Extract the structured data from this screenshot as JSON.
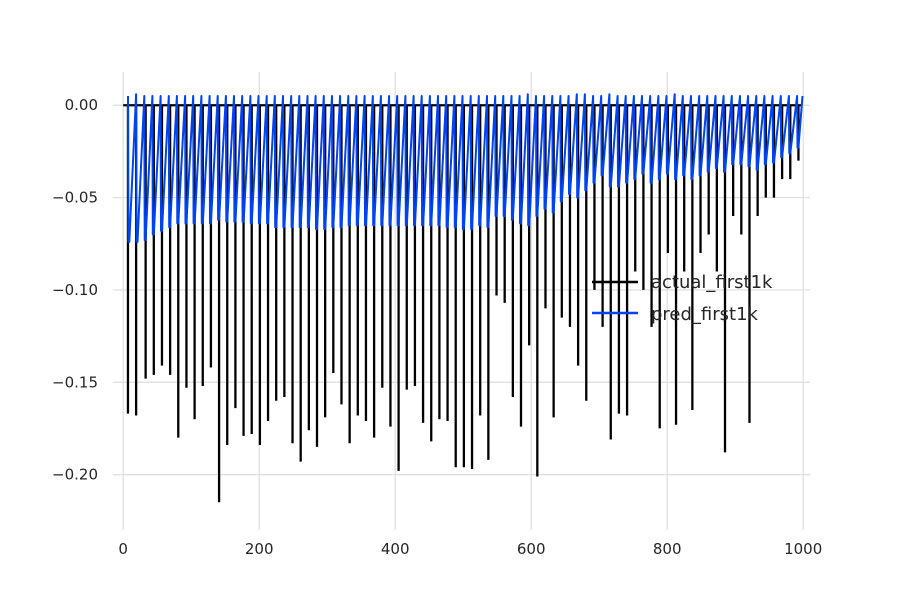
{
  "chart_data": {
    "type": "line",
    "title": "",
    "xlabel": "",
    "ylabel": "",
    "xlim": [
      -15,
      1010
    ],
    "ylim": [
      -0.23,
      0.018
    ],
    "xticks": [
      0,
      200,
      400,
      600,
      800,
      1000
    ],
    "xtick_labels": [
      "0",
      "200",
      "400",
      "600",
      "800",
      "1000"
    ],
    "yticks": [
      0.0,
      -0.05,
      -0.1,
      -0.15,
      -0.2
    ],
    "ytick_labels": [
      "0.00",
      "−0.05",
      "−0.10",
      "−0.15",
      "−0.20"
    ],
    "grid": true,
    "legend_position": "right",
    "series": [
      {
        "name": "actual_first1k",
        "color": "#000000",
        "baseline": 0.0,
        "x_range": [
          0,
          999
        ],
        "spikes": [
          {
            "x": 7,
            "y": -0.167
          },
          {
            "x": 19,
            "y": -0.168
          },
          {
            "x": 33,
            "y": -0.148
          },
          {
            "x": 45,
            "y": -0.146
          },
          {
            "x": 57,
            "y": -0.141
          },
          {
            "x": 69,
            "y": -0.146
          },
          {
            "x": 81,
            "y": -0.18
          },
          {
            "x": 93,
            "y": -0.153
          },
          {
            "x": 105,
            "y": -0.17
          },
          {
            "x": 117,
            "y": -0.152
          },
          {
            "x": 129,
            "y": -0.142
          },
          {
            "x": 141,
            "y": -0.215
          },
          {
            "x": 153,
            "y": -0.184
          },
          {
            "x": 165,
            "y": -0.164
          },
          {
            "x": 177,
            "y": -0.179
          },
          {
            "x": 189,
            "y": -0.178
          },
          {
            "x": 201,
            "y": -0.184
          },
          {
            "x": 213,
            "y": -0.171
          },
          {
            "x": 225,
            "y": -0.16
          },
          {
            "x": 237,
            "y": -0.158
          },
          {
            "x": 249,
            "y": -0.183
          },
          {
            "x": 261,
            "y": -0.193
          },
          {
            "x": 273,
            "y": -0.176
          },
          {
            "x": 285,
            "y": -0.185
          },
          {
            "x": 297,
            "y": -0.169
          },
          {
            "x": 309,
            "y": -0.145
          },
          {
            "x": 321,
            "y": -0.162
          },
          {
            "x": 333,
            "y": -0.183
          },
          {
            "x": 345,
            "y": -0.168
          },
          {
            "x": 357,
            "y": -0.171
          },
          {
            "x": 369,
            "y": -0.18
          },
          {
            "x": 381,
            "y": -0.153
          },
          {
            "x": 393,
            "y": -0.174
          },
          {
            "x": 405,
            "y": -0.198
          },
          {
            "x": 417,
            "y": -0.154
          },
          {
            "x": 429,
            "y": -0.152
          },
          {
            "x": 441,
            "y": -0.172
          },
          {
            "x": 453,
            "y": -0.182
          },
          {
            "x": 465,
            "y": -0.17
          },
          {
            "x": 477,
            "y": -0.171
          },
          {
            "x": 489,
            "y": -0.196
          },
          {
            "x": 501,
            "y": -0.196
          },
          {
            "x": 513,
            "y": -0.197
          },
          {
            "x": 525,
            "y": -0.168
          },
          {
            "x": 537,
            "y": -0.192
          },
          {
            "x": 549,
            "y": -0.103
          },
          {
            "x": 561,
            "y": -0.107
          },
          {
            "x": 573,
            "y": -0.158
          },
          {
            "x": 585,
            "y": -0.174
          },
          {
            "x": 597,
            "y": -0.13
          },
          {
            "x": 609,
            "y": -0.201
          },
          {
            "x": 621,
            "y": -0.11
          },
          {
            "x": 633,
            "y": -0.169
          },
          {
            "x": 645,
            "y": -0.115
          },
          {
            "x": 657,
            "y": -0.12
          },
          {
            "x": 669,
            "y": -0.141
          },
          {
            "x": 681,
            "y": -0.16
          },
          {
            "x": 693,
            "y": -0.1
          },
          {
            "x": 705,
            "y": -0.12
          },
          {
            "x": 717,
            "y": -0.181
          },
          {
            "x": 729,
            "y": -0.167
          },
          {
            "x": 741,
            "y": -0.168
          },
          {
            "x": 753,
            "y": -0.09
          },
          {
            "x": 765,
            "y": -0.1
          },
          {
            "x": 777,
            "y": -0.12
          },
          {
            "x": 789,
            "y": -0.175
          },
          {
            "x": 801,
            "y": -0.08
          },
          {
            "x": 813,
            "y": -0.173
          },
          {
            "x": 825,
            "y": -0.09
          },
          {
            "x": 837,
            "y": -0.165
          },
          {
            "x": 849,
            "y": -0.08
          },
          {
            "x": 861,
            "y": -0.07
          },
          {
            "x": 873,
            "y": -0.09
          },
          {
            "x": 885,
            "y": -0.188
          },
          {
            "x": 897,
            "y": -0.06
          },
          {
            "x": 909,
            "y": -0.07
          },
          {
            "x": 921,
            "y": -0.172
          },
          {
            "x": 933,
            "y": -0.06
          },
          {
            "x": 945,
            "y": -0.05
          },
          {
            "x": 957,
            "y": -0.05
          },
          {
            "x": 969,
            "y": -0.04
          },
          {
            "x": 981,
            "y": -0.04
          },
          {
            "x": 993,
            "y": -0.03
          }
        ]
      },
      {
        "name": "pred_first1k",
        "color": "#0044ee",
        "x_range": [
          0,
          999
        ],
        "peaks": [
          {
            "x": 7,
            "y": 0.005
          },
          {
            "x": 19,
            "y": 0.006
          },
          {
            "x": 31,
            "y": 0.005
          },
          {
            "x": 43,
            "y": 0.005
          },
          {
            "x": 55,
            "y": 0.005
          },
          {
            "x": 67,
            "y": 0.005
          },
          {
            "x": 79,
            "y": 0.005
          },
          {
            "x": 91,
            "y": 0.005
          },
          {
            "x": 103,
            "y": 0.005
          },
          {
            "x": 115,
            "y": 0.005
          },
          {
            "x": 127,
            "y": 0.005
          },
          {
            "x": 139,
            "y": 0.005
          },
          {
            "x": 151,
            "y": 0.005
          },
          {
            "x": 163,
            "y": 0.005
          },
          {
            "x": 175,
            "y": 0.005
          },
          {
            "x": 187,
            "y": 0.005
          },
          {
            "x": 199,
            "y": 0.005
          },
          {
            "x": 211,
            "y": 0.005
          },
          {
            "x": 223,
            "y": 0.005
          },
          {
            "x": 235,
            "y": 0.005
          },
          {
            "x": 247,
            "y": 0.005
          },
          {
            "x": 259,
            "y": 0.005
          },
          {
            "x": 271,
            "y": 0.005
          },
          {
            "x": 283,
            "y": 0.005
          },
          {
            "x": 295,
            "y": 0.005
          },
          {
            "x": 307,
            "y": 0.005
          },
          {
            "x": 319,
            "y": 0.005
          },
          {
            "x": 331,
            "y": 0.005
          },
          {
            "x": 343,
            "y": 0.005
          },
          {
            "x": 355,
            "y": 0.005
          },
          {
            "x": 367,
            "y": 0.005
          },
          {
            "x": 379,
            "y": 0.005
          },
          {
            "x": 391,
            "y": 0.005
          },
          {
            "x": 403,
            "y": 0.005
          },
          {
            "x": 415,
            "y": 0.005
          },
          {
            "x": 427,
            "y": 0.005
          },
          {
            "x": 439,
            "y": 0.005
          },
          {
            "x": 451,
            "y": 0.005
          },
          {
            "x": 463,
            "y": 0.005
          },
          {
            "x": 475,
            "y": 0.005
          },
          {
            "x": 487,
            "y": 0.005
          },
          {
            "x": 499,
            "y": 0.005
          },
          {
            "x": 511,
            "y": 0.005
          },
          {
            "x": 523,
            "y": 0.005
          },
          {
            "x": 535,
            "y": 0.005
          },
          {
            "x": 547,
            "y": 0.005
          },
          {
            "x": 559,
            "y": 0.005
          },
          {
            "x": 571,
            "y": 0.005
          },
          {
            "x": 583,
            "y": 0.005
          },
          {
            "x": 595,
            "y": 0.006
          },
          {
            "x": 607,
            "y": 0.005
          },
          {
            "x": 619,
            "y": 0.005
          },
          {
            "x": 631,
            "y": 0.005
          },
          {
            "x": 643,
            "y": 0.005
          },
          {
            "x": 655,
            "y": 0.005
          },
          {
            "x": 667,
            "y": 0.006
          },
          {
            "x": 679,
            "y": 0.006
          },
          {
            "x": 691,
            "y": 0.005
          },
          {
            "x": 703,
            "y": 0.005
          },
          {
            "x": 715,
            "y": 0.006
          },
          {
            "x": 727,
            "y": 0.005
          },
          {
            "x": 739,
            "y": 0.005
          },
          {
            "x": 751,
            "y": 0.005
          },
          {
            "x": 763,
            "y": 0.005
          },
          {
            "x": 775,
            "y": 0.005
          },
          {
            "x": 787,
            "y": 0.005
          },
          {
            "x": 799,
            "y": 0.005
          },
          {
            "x": 811,
            "y": 0.006
          },
          {
            "x": 823,
            "y": 0.005
          },
          {
            "x": 835,
            "y": 0.005
          },
          {
            "x": 847,
            "y": 0.005
          },
          {
            "x": 859,
            "y": 0.005
          },
          {
            "x": 871,
            "y": 0.005
          },
          {
            "x": 883,
            "y": 0.005
          },
          {
            "x": 895,
            "y": 0.005
          },
          {
            "x": 907,
            "y": 0.005
          },
          {
            "x": 919,
            "y": 0.005
          },
          {
            "x": 931,
            "y": 0.005
          },
          {
            "x": 943,
            "y": 0.005
          },
          {
            "x": 955,
            "y": 0.005
          },
          {
            "x": 967,
            "y": 0.005
          },
          {
            "x": 979,
            "y": 0.005
          },
          {
            "x": 991,
            "y": 0.005
          }
        ],
        "troughs": [
          {
            "x": 9,
            "y": -0.074
          },
          {
            "x": 21,
            "y": -0.074
          },
          {
            "x": 33,
            "y": -0.073
          },
          {
            "x": 45,
            "y": -0.07
          },
          {
            "x": 57,
            "y": -0.068
          },
          {
            "x": 69,
            "y": -0.066
          },
          {
            "x": 81,
            "y": -0.064
          },
          {
            "x": 93,
            "y": -0.064
          },
          {
            "x": 105,
            "y": -0.064
          },
          {
            "x": 117,
            "y": -0.064
          },
          {
            "x": 129,
            "y": -0.064
          },
          {
            "x": 141,
            "y": -0.062
          },
          {
            "x": 153,
            "y": -0.063
          },
          {
            "x": 165,
            "y": -0.063
          },
          {
            "x": 177,
            "y": -0.063
          },
          {
            "x": 189,
            "y": -0.064
          },
          {
            "x": 201,
            "y": -0.064
          },
          {
            "x": 213,
            "y": -0.064
          },
          {
            "x": 225,
            "y": -0.066
          },
          {
            "x": 237,
            "y": -0.066
          },
          {
            "x": 249,
            "y": -0.066
          },
          {
            "x": 261,
            "y": -0.066
          },
          {
            "x": 273,
            "y": -0.066
          },
          {
            "x": 285,
            "y": -0.067
          },
          {
            "x": 297,
            "y": -0.067
          },
          {
            "x": 309,
            "y": -0.066
          },
          {
            "x": 321,
            "y": -0.066
          },
          {
            "x": 333,
            "y": -0.065
          },
          {
            "x": 345,
            "y": -0.065
          },
          {
            "x": 357,
            "y": -0.065
          },
          {
            "x": 369,
            "y": -0.065
          },
          {
            "x": 381,
            "y": -0.065
          },
          {
            "x": 393,
            "y": -0.065
          },
          {
            "x": 405,
            "y": -0.065
          },
          {
            "x": 417,
            "y": -0.065
          },
          {
            "x": 429,
            "y": -0.065
          },
          {
            "x": 441,
            "y": -0.065
          },
          {
            "x": 453,
            "y": -0.065
          },
          {
            "x": 465,
            "y": -0.065
          },
          {
            "x": 477,
            "y": -0.066
          },
          {
            "x": 489,
            "y": -0.066
          },
          {
            "x": 501,
            "y": -0.067
          },
          {
            "x": 513,
            "y": -0.067
          },
          {
            "x": 525,
            "y": -0.065
          },
          {
            "x": 537,
            "y": -0.066
          },
          {
            "x": 549,
            "y": -0.06
          },
          {
            "x": 561,
            "y": -0.06
          },
          {
            "x": 573,
            "y": -0.062
          },
          {
            "x": 585,
            "y": -0.064
          },
          {
            "x": 597,
            "y": -0.065
          },
          {
            "x": 609,
            "y": -0.06
          },
          {
            "x": 621,
            "y": -0.056
          },
          {
            "x": 633,
            "y": -0.058
          },
          {
            "x": 645,
            "y": -0.052
          },
          {
            "x": 657,
            "y": -0.048
          },
          {
            "x": 669,
            "y": -0.05
          },
          {
            "x": 681,
            "y": -0.046
          },
          {
            "x": 693,
            "y": -0.042
          },
          {
            "x": 705,
            "y": -0.038
          },
          {
            "x": 717,
            "y": -0.044
          },
          {
            "x": 729,
            "y": -0.044
          },
          {
            "x": 741,
            "y": -0.042
          },
          {
            "x": 753,
            "y": -0.04
          },
          {
            "x": 765,
            "y": -0.037
          },
          {
            "x": 777,
            "y": -0.042
          },
          {
            "x": 789,
            "y": -0.04
          },
          {
            "x": 801,
            "y": -0.037
          },
          {
            "x": 813,
            "y": -0.04
          },
          {
            "x": 825,
            "y": -0.038
          },
          {
            "x": 837,
            "y": -0.04
          },
          {
            "x": 849,
            "y": -0.038
          },
          {
            "x": 861,
            "y": -0.036
          },
          {
            "x": 873,
            "y": -0.034
          },
          {
            "x": 885,
            "y": -0.036
          },
          {
            "x": 897,
            "y": -0.032
          },
          {
            "x": 909,
            "y": -0.032
          },
          {
            "x": 921,
            "y": -0.033
          },
          {
            "x": 933,
            "y": -0.035
          },
          {
            "x": 945,
            "y": -0.032
          },
          {
            "x": 957,
            "y": -0.031
          },
          {
            "x": 969,
            "y": -0.028
          },
          {
            "x": 981,
            "y": -0.026
          },
          {
            "x": 993,
            "y": -0.023
          }
        ]
      }
    ]
  }
}
